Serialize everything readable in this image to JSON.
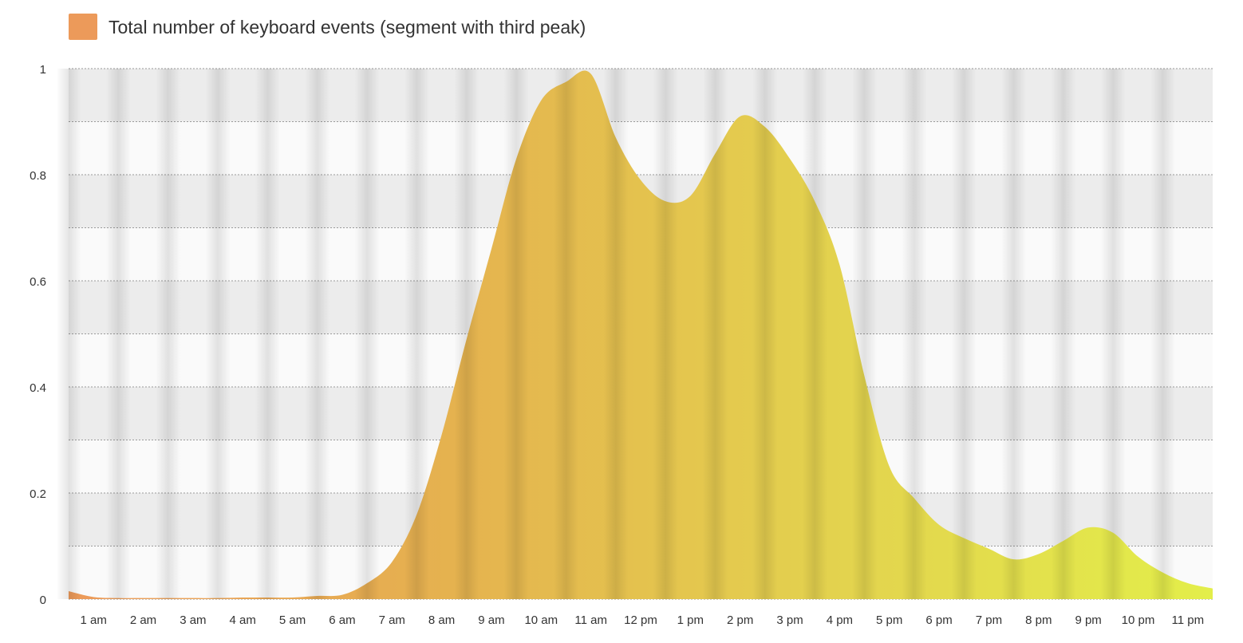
{
  "chart_data": {
    "type": "area",
    "title": "",
    "xlabel": "",
    "ylabel": "",
    "x_tick_labels": [
      "1 am",
      "2 am",
      "3 am",
      "4 am",
      "5 am",
      "6 am",
      "7 am",
      "8 am",
      "9 am",
      "10 am",
      "11 am",
      "12 pm",
      "1 pm",
      "2 pm",
      "3 pm",
      "4 pm",
      "5 pm",
      "6 pm",
      "7 pm",
      "8 pm",
      "9 pm",
      "10 pm",
      "11 pm"
    ],
    "y_ticks": [
      0,
      0.2,
      0.4,
      0.6,
      0.8,
      1
    ],
    "y_tick_labels": [
      "0",
      "0.2",
      "0.4",
      "0.6",
      "0.8",
      "1"
    ],
    "xlim": [
      0.5,
      23.5
    ],
    "ylim": [
      0,
      1
    ],
    "grid": true,
    "legend_position": "top-left",
    "gradient_colors": [
      "#ec9a5a",
      "#e5b24f",
      "#e3d24e",
      "#e3ee4a"
    ],
    "series": [
      {
        "name": "Total number of keyboard events (segment with third peak)",
        "color": "#ec9a5a",
        "x": [
          0.5,
          1,
          1.5,
          2,
          2.5,
          3,
          3.5,
          4,
          4.5,
          5,
          5.5,
          6,
          6.5,
          7,
          7.5,
          8,
          8.5,
          9,
          9.5,
          10,
          10.5,
          11,
          11.5,
          12,
          12.5,
          13,
          13.5,
          14,
          14.5,
          15,
          15.5,
          16,
          16.5,
          17,
          17.5,
          18,
          18.5,
          19,
          19.5,
          20,
          20.5,
          21,
          21.5,
          22,
          22.5,
          23,
          23.5
        ],
        "y": [
          0.015,
          0.004,
          0.002,
          0.002,
          0.002,
          0.002,
          0.002,
          0.003,
          0.003,
          0.003,
          0.006,
          0.008,
          0.03,
          0.07,
          0.16,
          0.31,
          0.49,
          0.66,
          0.83,
          0.94,
          0.975,
          0.99,
          0.87,
          0.79,
          0.75,
          0.76,
          0.84,
          0.91,
          0.89,
          0.83,
          0.75,
          0.63,
          0.42,
          0.25,
          0.19,
          0.14,
          0.115,
          0.095,
          0.075,
          0.085,
          0.11,
          0.135,
          0.125,
          0.08,
          0.05,
          0.03,
          0.02
        ]
      }
    ]
  }
}
